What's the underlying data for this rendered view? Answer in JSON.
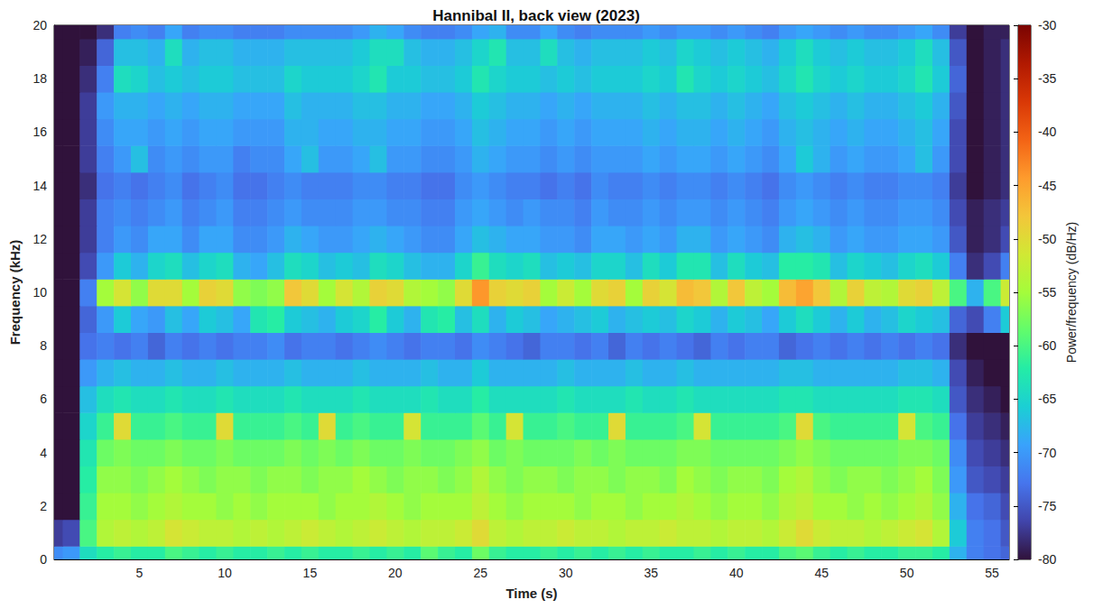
{
  "chart_data": {
    "type": "heatmap",
    "title": "Hannibal II, back view (2023)",
    "x_label": "Time (s)",
    "y_label": "Frequency (kHz)",
    "xlim": [
      0,
      56
    ],
    "xticks": [
      5,
      10,
      15,
      20,
      25,
      30,
      35,
      40,
      45,
      50,
      55
    ],
    "ylim": [
      0,
      20
    ],
    "yticks": [
      0,
      2,
      4,
      6,
      8,
      10,
      12,
      14,
      16,
      18,
      20
    ],
    "grid": false,
    "x": [
      0,
      1,
      2,
      3,
      4,
      5,
      6,
      7,
      8,
      9,
      10,
      11,
      12,
      13,
      14,
      15,
      16,
      17,
      18,
      19,
      20,
      21,
      22,
      23,
      24,
      25,
      26,
      27,
      28,
      29,
      30,
      31,
      32,
      33,
      34,
      35,
      36,
      37,
      38,
      39,
      40,
      41,
      42,
      43,
      44,
      45,
      46,
      47,
      48,
      49,
      50,
      51,
      52,
      53,
      54,
      55,
      56
    ],
    "y": [
      0,
      1,
      2,
      3,
      4,
      5,
      6,
      7,
      8,
      9,
      10,
      11,
      12,
      13,
      14,
      15,
      16,
      17,
      18,
      19,
      20
    ],
    "values": [
      [
        -71,
        -70,
        -64,
        -62,
        -61,
        -62,
        -62,
        -60,
        -61,
        -62,
        -61,
        -62,
        -62,
        -61,
        -62,
        -61,
        -62,
        -62,
        -61,
        -62,
        -61,
        -62,
        -59,
        -61,
        -62,
        -58,
        -61,
        -62,
        -62,
        -61,
        -62,
        -61,
        -62,
        -61,
        -62,
        -61,
        -62,
        -62,
        -61,
        -62,
        -61,
        -62,
        -62,
        -60,
        -59,
        -61,
        -62,
        -61,
        -62,
        -62,
        -61,
        -61,
        -62,
        -68,
        -72,
        -73,
        -74
      ],
      [
        -77,
        -76,
        -60,
        -54,
        -53,
        -54,
        -53,
        -51,
        -52,
        -53,
        -53,
        -54,
        -53,
        -54,
        -53,
        -52,
        -53,
        -54,
        -53,
        -52,
        -53,
        -54,
        -53,
        -53,
        -52,
        -50,
        -53,
        -54,
        -53,
        -53,
        -52,
        -53,
        -53,
        -54,
        -53,
        -53,
        -52,
        -53,
        -53,
        -54,
        -53,
        -53,
        -54,
        -52,
        -50,
        -52,
        -53,
        -53,
        -54,
        -53,
        -52,
        -51,
        -54,
        -66,
        -72,
        -73,
        -75
      ],
      [
        -80,
        -80,
        -61,
        -55,
        -55,
        -56,
        -55,
        -54,
        -55,
        -55,
        -56,
        -55,
        -56,
        -55,
        -55,
        -55,
        -56,
        -55,
        -55,
        -54,
        -55,
        -56,
        -55,
        -55,
        -55,
        -53,
        -55,
        -56,
        -55,
        -55,
        -55,
        -56,
        -55,
        -55,
        -56,
        -55,
        -55,
        -54,
        -55,
        -56,
        -55,
        -55,
        -56,
        -54,
        -53,
        -55,
        -55,
        -56,
        -55,
        -56,
        -55,
        -54,
        -56,
        -68,
        -73,
        -74,
        -76
      ],
      [
        -80,
        -80,
        -62,
        -56,
        -56,
        -57,
        -56,
        -55,
        -56,
        -57,
        -56,
        -56,
        -57,
        -56,
        -56,
        -57,
        -56,
        -56,
        -55,
        -56,
        -57,
        -56,
        -56,
        -57,
        -56,
        -54,
        -56,
        -57,
        -56,
        -56,
        -57,
        -56,
        -56,
        -57,
        -56,
        -56,
        -57,
        -55,
        -56,
        -57,
        -56,
        -56,
        -57,
        -55,
        -54,
        -56,
        -57,
        -56,
        -56,
        -57,
        -56,
        -55,
        -57,
        -70,
        -75,
        -76,
        -77
      ],
      [
        -80,
        -80,
        -63,
        -58,
        -57,
        -58,
        -58,
        -57,
        -58,
        -58,
        -57,
        -58,
        -58,
        -58,
        -57,
        -58,
        -57,
        -58,
        -57,
        -58,
        -58,
        -57,
        -58,
        -58,
        -57,
        -56,
        -58,
        -57,
        -58,
        -58,
        -58,
        -57,
        -58,
        -57,
        -58,
        -58,
        -58,
        -57,
        -57,
        -58,
        -58,
        -58,
        -58,
        -57,
        -56,
        -57,
        -58,
        -58,
        -58,
        -58,
        -57,
        -57,
        -58,
        -71,
        -76,
        -77,
        -78
      ],
      [
        -80,
        -80,
        -65,
        -61,
        -50,
        -61,
        -61,
        -60,
        -61,
        -61,
        -50,
        -61,
        -61,
        -61,
        -60,
        -61,
        -50,
        -61,
        -60,
        -61,
        -61,
        -51,
        -61,
        -61,
        -61,
        -59,
        -61,
        -51,
        -61,
        -61,
        -60,
        -61,
        -61,
        -50,
        -61,
        -61,
        -61,
        -60,
        -51,
        -61,
        -61,
        -61,
        -61,
        -60,
        -50,
        -60,
        -61,
        -61,
        -61,
        -61,
        -51,
        -60,
        -61,
        -73,
        -77,
        -78,
        -79
      ],
      [
        -80,
        -80,
        -67,
        -64,
        -63,
        -64,
        -64,
        -63,
        -64,
        -64,
        -63,
        -64,
        -64,
        -64,
        -63,
        -64,
        -64,
        -64,
        -63,
        -64,
        -64,
        -64,
        -63,
        -64,
        -64,
        -62,
        -64,
        -64,
        -64,
        -64,
        -63,
        -64,
        -64,
        -64,
        -63,
        -64,
        -64,
        -63,
        -64,
        -64,
        -64,
        -64,
        -64,
        -63,
        -63,
        -64,
        -64,
        -64,
        -64,
        -64,
        -63,
        -63,
        -64,
        -75,
        -78,
        -79,
        -80
      ],
      [
        -80,
        -80,
        -70,
        -68,
        -67,
        -68,
        -68,
        -67,
        -68,
        -68,
        -67,
        -68,
        -68,
        -68,
        -67,
        -68,
        -68,
        -68,
        -67,
        -68,
        -68,
        -68,
        -67,
        -68,
        -68,
        -66,
        -68,
        -68,
        -68,
        -68,
        -67,
        -68,
        -68,
        -68,
        -67,
        -68,
        -68,
        -67,
        -68,
        -68,
        -68,
        -68,
        -68,
        -67,
        -67,
        -68,
        -68,
        -68,
        -68,
        -68,
        -67,
        -67,
        -68,
        -76,
        -79,
        -80,
        -80
      ],
      [
        -80,
        -80,
        -73,
        -72,
        -73,
        -72,
        -74,
        -72,
        -73,
        -72,
        -73,
        -72,
        -72,
        -71,
        -73,
        -72,
        -72,
        -73,
        -72,
        -71,
        -72,
        -73,
        -72,
        -72,
        -73,
        -71,
        -72,
        -73,
        -74,
        -72,
        -72,
        -73,
        -72,
        -74,
        -72,
        -73,
        -72,
        -73,
        -74,
        -72,
        -73,
        -72,
        -72,
        -74,
        -73,
        -72,
        -73,
        -72,
        -73,
        -72,
        -73,
        -72,
        -73,
        -78,
        -80,
        -80,
        -80
      ],
      [
        -80,
        -80,
        -74,
        -70,
        -66,
        -69,
        -70,
        -67,
        -69,
        -66,
        -67,
        -69,
        -63,
        -62,
        -66,
        -67,
        -68,
        -66,
        -65,
        -62,
        -66,
        -68,
        -63,
        -62,
        -67,
        -64,
        -68,
        -66,
        -67,
        -69,
        -68,
        -67,
        -66,
        -68,
        -67,
        -66,
        -67,
        -65,
        -66,
        -68,
        -66,
        -67,
        -69,
        -66,
        -64,
        -66,
        -68,
        -66,
        -68,
        -67,
        -65,
        -66,
        -67,
        -74,
        -76,
        -72,
        -66
      ],
      [
        -80,
        -80,
        -72,
        -55,
        -51,
        -56,
        -50,
        -50,
        -55,
        -49,
        -50,
        -56,
        -57,
        -56,
        -48,
        -50,
        -55,
        -51,
        -54,
        -49,
        -50,
        -54,
        -55,
        -56,
        -50,
        -44,
        -49,
        -50,
        -49,
        -55,
        -52,
        -55,
        -50,
        -49,
        -55,
        -49,
        -51,
        -47,
        -48,
        -54,
        -48,
        -53,
        -55,
        -47,
        -45,
        -48,
        -54,
        -49,
        -53,
        -54,
        -50,
        -49,
        -53,
        -60,
        -68,
        -60,
        -52
      ],
      [
        -80,
        -80,
        -76,
        -70,
        -66,
        -68,
        -65,
        -64,
        -67,
        -65,
        -64,
        -68,
        -69,
        -67,
        -64,
        -65,
        -67,
        -66,
        -67,
        -64,
        -65,
        -67,
        -68,
        -68,
        -65,
        -61,
        -64,
        -65,
        -64,
        -67,
        -66,
        -67,
        -65,
        -65,
        -67,
        -64,
        -66,
        -63,
        -63,
        -67,
        -64,
        -66,
        -67,
        -62,
        -62,
        -63,
        -67,
        -65,
        -66,
        -67,
        -65,
        -64,
        -66,
        -72,
        -78,
        -76,
        -72
      ],
      [
        -80,
        -80,
        -77,
        -72,
        -70,
        -71,
        -69,
        -69,
        -71,
        -69,
        -69,
        -71,
        -71,
        -70,
        -68,
        -69,
        -70,
        -70,
        -69,
        -68,
        -69,
        -70,
        -71,
        -71,
        -69,
        -67,
        -68,
        -69,
        -69,
        -70,
        -70,
        -71,
        -69,
        -69,
        -70,
        -69,
        -70,
        -68,
        -68,
        -70,
        -69,
        -70,
        -71,
        -68,
        -67,
        -68,
        -70,
        -69,
        -70,
        -70,
        -69,
        -69,
        -70,
        -75,
        -79,
        -78,
        -76
      ],
      [
        -80,
        -80,
        -77,
        -72,
        -71,
        -72,
        -71,
        -70,
        -72,
        -71,
        -70,
        -72,
        -72,
        -71,
        -70,
        -71,
        -71,
        -71,
        -70,
        -70,
        -71,
        -71,
        -72,
        -72,
        -70,
        -69,
        -70,
        -71,
        -70,
        -71,
        -71,
        -72,
        -70,
        -71,
        -71,
        -70,
        -71,
        -70,
        -70,
        -71,
        -70,
        -71,
        -72,
        -70,
        -69,
        -70,
        -71,
        -70,
        -71,
        -71,
        -70,
        -70,
        -71,
        -76,
        -79,
        -78,
        -77
      ],
      [
        -80,
        -80,
        -78,
        -73,
        -72,
        -73,
        -72,
        -71,
        -73,
        -72,
        -71,
        -73,
        -73,
        -72,
        -71,
        -72,
        -72,
        -72,
        -71,
        -71,
        -72,
        -72,
        -73,
        -73,
        -71,
        -70,
        -71,
        -72,
        -72,
        -73,
        -72,
        -73,
        -71,
        -72,
        -72,
        -71,
        -72,
        -71,
        -71,
        -72,
        -71,
        -72,
        -73,
        -71,
        -70,
        -71,
        -72,
        -71,
        -72,
        -72,
        -71,
        -71,
        -72,
        -77,
        -80,
        -79,
        -78
      ],
      [
        -80,
        -80,
        -77,
        -72,
        -70,
        -67,
        -71,
        -70,
        -71,
        -70,
        -70,
        -72,
        -71,
        -71,
        -69,
        -67,
        -70,
        -70,
        -69,
        -67,
        -70,
        -70,
        -71,
        -71,
        -70,
        -68,
        -69,
        -70,
        -70,
        -71,
        -70,
        -71,
        -70,
        -70,
        -70,
        -69,
        -70,
        -69,
        -69,
        -70,
        -69,
        -70,
        -71,
        -69,
        -66,
        -68,
        -70,
        -69,
        -70,
        -70,
        -69,
        -67,
        -70,
        -76,
        -80,
        -79,
        -78
      ],
      [
        -80,
        -80,
        -77,
        -71,
        -69,
        -69,
        -70,
        -69,
        -70,
        -69,
        -69,
        -70,
        -70,
        -70,
        -68,
        -68,
        -69,
        -69,
        -68,
        -68,
        -69,
        -69,
        -70,
        -70,
        -69,
        -67,
        -68,
        -69,
        -69,
        -70,
        -69,
        -70,
        -69,
        -69,
        -69,
        -68,
        -69,
        -68,
        -68,
        -69,
        -68,
        -69,
        -70,
        -68,
        -67,
        -68,
        -69,
        -68,
        -69,
        -69,
        -68,
        -67,
        -69,
        -76,
        -80,
        -79,
        -78
      ],
      [
        -80,
        -80,
        -77,
        -70,
        -68,
        -68,
        -69,
        -68,
        -69,
        -68,
        -68,
        -69,
        -69,
        -69,
        -67,
        -68,
        -68,
        -68,
        -67,
        -67,
        -68,
        -68,
        -69,
        -69,
        -68,
        -66,
        -67,
        -68,
        -68,
        -69,
        -68,
        -69,
        -68,
        -68,
        -68,
        -67,
        -68,
        -67,
        -67,
        -68,
        -67,
        -68,
        -69,
        -67,
        -66,
        -67,
        -68,
        -67,
        -68,
        -68,
        -67,
        -66,
        -68,
        -75,
        -80,
        -79,
        -78
      ],
      [
        -80,
        -80,
        -78,
        -72,
        -64,
        -65,
        -67,
        -66,
        -67,
        -66,
        -66,
        -67,
        -67,
        -67,
        -65,
        -66,
        -66,
        -66,
        -65,
        -63,
        -66,
        -66,
        -67,
        -67,
        -66,
        -63,
        -65,
        -66,
        -66,
        -67,
        -66,
        -67,
        -66,
        -66,
        -66,
        -65,
        -66,
        -63,
        -65,
        -66,
        -65,
        -66,
        -67,
        -65,
        -63,
        -65,
        -66,
        -65,
        -66,
        -66,
        -65,
        -63,
        -66,
        -74,
        -80,
        -79,
        -78
      ],
      [
        -80,
        -80,
        -79,
        -74,
        -67,
        -67,
        -68,
        -64,
        -68,
        -67,
        -67,
        -68,
        -68,
        -68,
        -67,
        -67,
        -67,
        -67,
        -66,
        -64,
        -64,
        -67,
        -68,
        -68,
        -67,
        -65,
        -63,
        -67,
        -67,
        -64,
        -67,
        -68,
        -67,
        -67,
        -67,
        -66,
        -67,
        -65,
        -66,
        -67,
        -66,
        -67,
        -68,
        -66,
        -64,
        -66,
        -67,
        -66,
        -67,
        -67,
        -66,
        -64,
        -67,
        -75,
        -80,
        -79,
        -78
      ],
      [
        -80,
        -80,
        -80,
        -78,
        -72,
        -71,
        -72,
        -69,
        -72,
        -71,
        -71,
        -72,
        -72,
        -72,
        -71,
        -71,
        -71,
        -71,
        -70,
        -68,
        -69,
        -71,
        -72,
        -72,
        -71,
        -69,
        -68,
        -71,
        -71,
        -69,
        -71,
        -72,
        -71,
        -71,
        -71,
        -70,
        -71,
        -70,
        -70,
        -71,
        -70,
        -71,
        -72,
        -70,
        -69,
        -70,
        -71,
        -70,
        -71,
        -71,
        -70,
        -69,
        -71,
        -77,
        -80,
        -79,
        -79
      ]
    ],
    "colorbar_label": "Power/frequency (dB/Hz)",
    "colorbar_range": [
      -80,
      -30
    ],
    "colorbar_ticks": [
      -80,
      -75,
      -70,
      -65,
      -60,
      -55,
      -50,
      -45,
      -40,
      -35,
      -30
    ]
  }
}
